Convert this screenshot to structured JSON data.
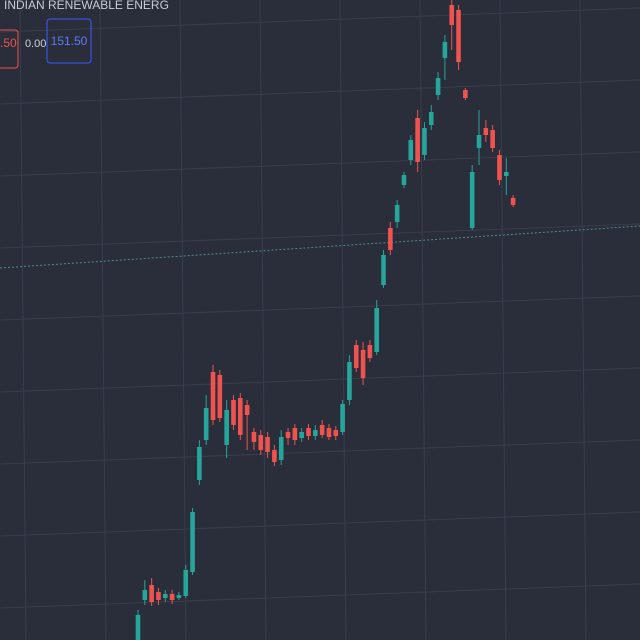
{
  "header": {
    "title": "INDIAN RENEWABLE ENERG",
    "bid": ".50",
    "change": "0.00",
    "ask": "151.50"
  },
  "chart_data": {
    "type": "candlestick",
    "grid": true,
    "ylim": [
      50,
      178
    ],
    "categories": [
      null,
      null,
      null,
      null,
      null,
      null,
      null,
      null,
      null,
      null,
      null,
      null,
      null,
      null,
      null,
      null,
      null,
      null,
      null,
      null,
      null,
      null,
      null,
      null,
      null,
      null,
      null,
      null,
      null,
      null,
      null,
      null,
      null,
      null,
      null,
      null,
      null,
      null,
      null,
      null,
      null,
      null,
      null,
      null,
      null,
      null,
      null,
      null,
      null,
      null,
      null,
      null,
      null,
      null,
      null,
      null
    ],
    "up_color": "#26a69a",
    "down_color": "#ef5350",
    "open": [
      50,
      58,
      61,
      59.6,
      58.4,
      59.2,
      58.4,
      58.8,
      63.6,
      82,
      90,
      103.6,
      103,
      89,
      98,
      98.4,
      97,
      91.6,
      91,
      90.6,
      88,
      86,
      91.6,
      92.4,
      90.4,
      92.4,
      90.8,
      93,
      92.4,
      92,
      91.6,
      98,
      109,
      108,
      109,
      107.6,
      121,
      132.4,
      133.6,
      141,
      146,
      154.4,
      147,
      153,
      159,
      166.4,
      177,
      176,
      160,
      132.4,
      148.4,
      152.4,
      152,
      147,
      142.8,
      138.4
    ],
    "high": [
      56,
      62,
      62.4,
      60.4,
      60,
      60,
      59.6,
      65,
      76.4,
      90,
      99,
      105,
      104,
      98,
      99,
      99.4,
      98,
      92.4,
      92,
      91.6,
      89,
      92,
      92.4,
      93.2,
      92.4,
      93.2,
      93,
      94,
      93.2,
      92.8,
      98,
      107,
      110,
      109.6,
      110,
      118,
      128,
      133.6,
      138,
      143.6,
      151,
      156,
      153.6,
      157,
      163.6,
      171,
      178,
      177,
      160.4,
      145,
      156,
      154,
      153,
      148,
      146.4,
      139
    ],
    "low": [
      50,
      57,
      56.8,
      57,
      57.6,
      57.2,
      58,
      58.4,
      63,
      81,
      89,
      93,
      93.6,
      86.4,
      92,
      90,
      88,
      88,
      87,
      86.4,
      84.8,
      85,
      89,
      89,
      89.6,
      90,
      90,
      90.4,
      90,
      90,
      91,
      97,
      103.6,
      101,
      105.6,
      107,
      120.4,
      127,
      132.4,
      140.4,
      145,
      143.6,
      146,
      152,
      158,
      162,
      168,
      164,
      158,
      132,
      145,
      149.6,
      147.6,
      141,
      139,
      136.6
    ],
    "close": [
      55,
      60,
      57.6,
      58,
      59.2,
      58,
      59,
      64,
      75.6,
      88.6,
      96.4,
      94,
      94.4,
      96,
      93,
      91,
      95,
      89.6,
      88,
      87.6,
      85.6,
      90.6,
      90.4,
      90,
      91.6,
      90.8,
      92,
      91,
      90.6,
      90.8,
      97.2,
      105.6,
      104.4,
      102.4,
      106.4,
      116.4,
      127,
      128,
      137,
      143,
      150,
      145.6,
      152.4,
      155.6,
      162.4,
      169.6,
      173,
      165.6,
      158.4,
      143.6,
      151,
      151,
      148.4,
      142,
      143.6,
      137
    ]
  }
}
